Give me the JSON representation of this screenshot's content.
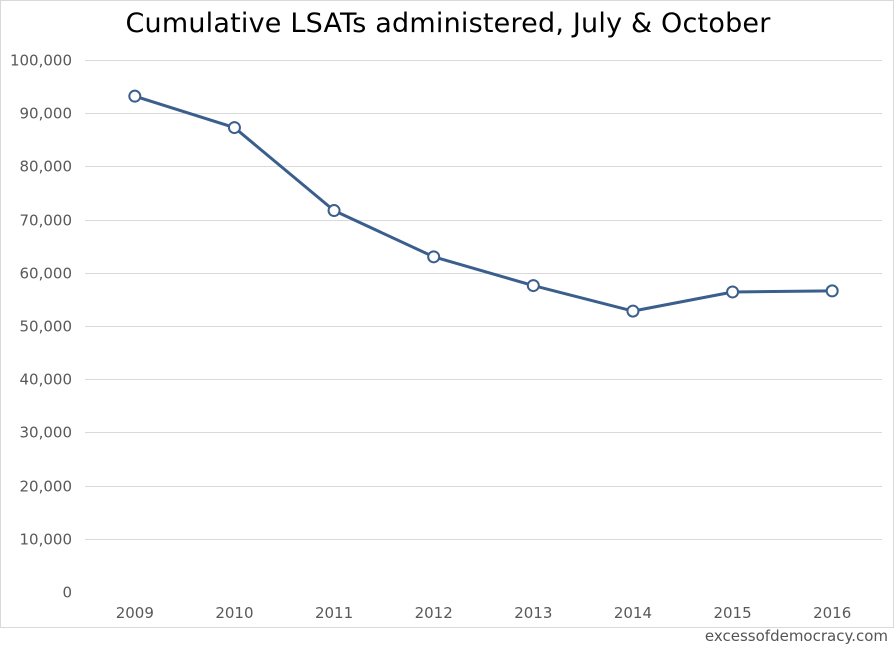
{
  "watermark": "excessofdemocracy.com",
  "colors": {
    "series": "#3a5f8c",
    "grid": "#d9d9d9",
    "tick_text": "#595959"
  },
  "chart_data": {
    "type": "line",
    "title": "Cumulative LSATs administered, July & October",
    "xlabel": "",
    "ylabel": "",
    "ylim": [
      0,
      100000
    ],
    "yticks": [
      0,
      10000,
      20000,
      30000,
      40000,
      50000,
      60000,
      70000,
      80000,
      90000,
      100000
    ],
    "ytick_labels": [
      "0",
      "10,000",
      "20,000",
      "30,000",
      "40,000",
      "50,000",
      "60,000",
      "70,000",
      "80,000",
      "90,000",
      "100,000"
    ],
    "categories": [
      "2009",
      "2010",
      "2011",
      "2012",
      "2013",
      "2014",
      "2015",
      "2016"
    ],
    "series": [
      {
        "values": [
          93200,
          87300,
          71700,
          63000,
          57600,
          52800,
          56400,
          56600
        ]
      }
    ],
    "grid": true,
    "legend": "none",
    "markers": "open-circle"
  }
}
